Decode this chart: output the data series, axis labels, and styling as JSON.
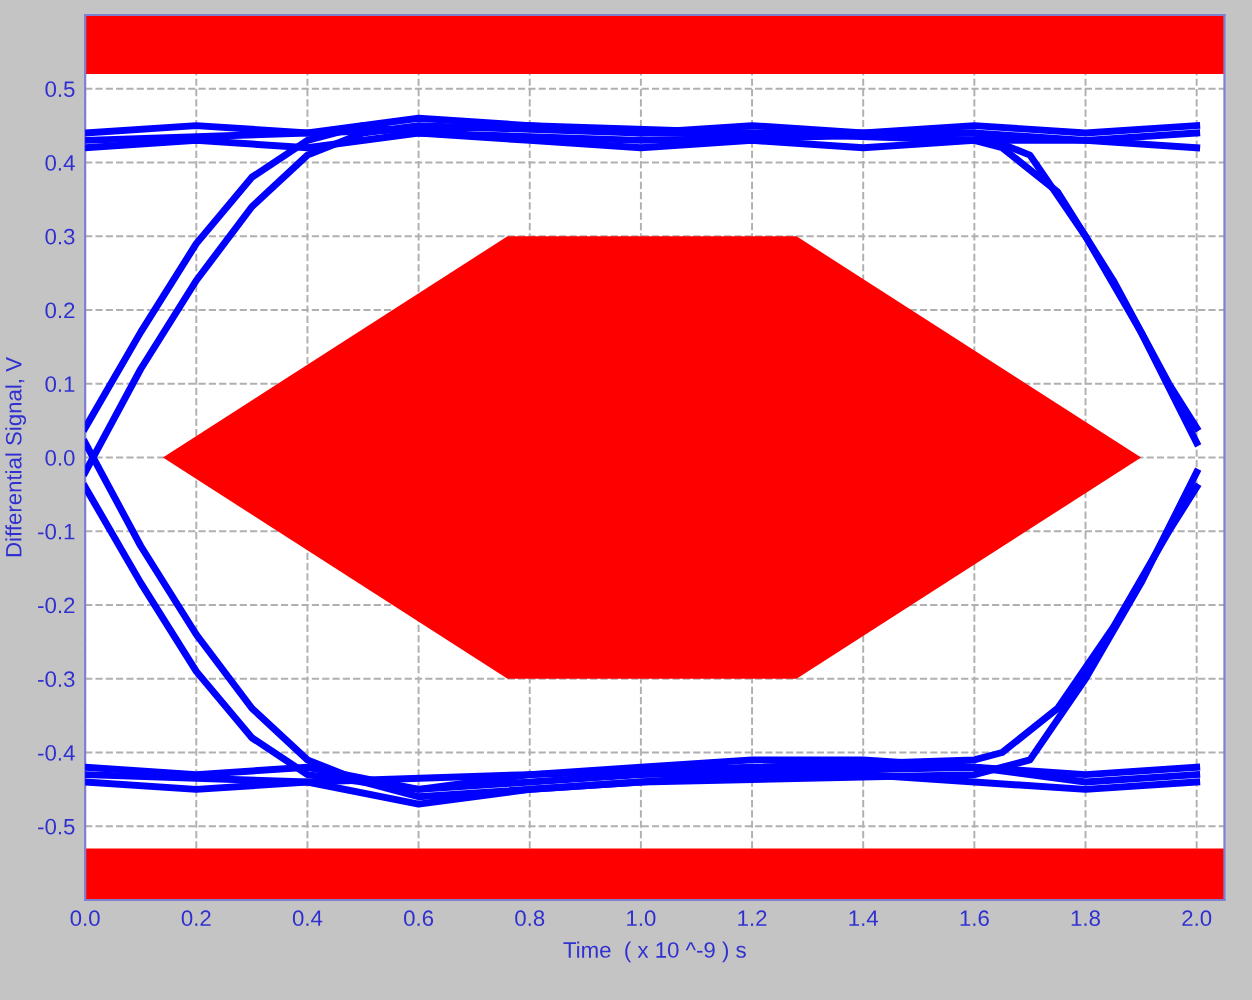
{
  "chart_data": {
    "type": "line",
    "xlabel": "Time  ( x 10 ^-9 ) s",
    "ylabel": "Differential Signal, V",
    "xlim": [
      0,
      2.05
    ],
    "ylim": [
      -0.6,
      0.6
    ],
    "xticks": [
      {
        "value": 0,
        "label": "0.0"
      },
      0.2,
      0.4,
      0.6,
      0.8,
      {
        "value": 1,
        "label": "1.0"
      },
      1.2,
      1.4,
      1.6,
      1.8,
      {
        "value": 2,
        "label": "2.0"
      }
    ],
    "yticks": [
      -0.5,
      -0.4,
      -0.3,
      -0.2,
      -0.1,
      {
        "value": 0,
        "label": "0.0"
      },
      0.1,
      0.2,
      0.3,
      0.4,
      0.5
    ],
    "grid": true,
    "legend": false,
    "marker": "none",
    "line_style": "solid",
    "bands": [
      {
        "axis": "y",
        "from": 0.52,
        "to": 0.6,
        "color": "#ff0000"
      },
      {
        "axis": "y",
        "from": -0.6,
        "to": -0.53,
        "color": "#ff0000"
      }
    ],
    "series": [
      {
        "type": "area",
        "color": "#ff0000",
        "x": [
          0.14,
          0.76,
          1.28,
          1.9,
          1.28,
          0.76,
          0.14
        ],
        "values": [
          0,
          0.3,
          0.3,
          0,
          -0.3,
          -0.3,
          0
        ]
      },
      {
        "color": "#0000ff",
        "x": [
          0,
          0.2,
          0.4,
          0.6,
          0.8,
          1.0,
          1.2,
          1.4,
          1.6,
          1.8,
          2.0
        ],
        "values": [
          0.44,
          0.45,
          0.44,
          0.46,
          0.45,
          0.44,
          0.45,
          0.44,
          0.45,
          0.44,
          0.45
        ]
      },
      {
        "color": "#0000ff",
        "x": [
          0,
          0.2,
          0.4,
          0.6,
          0.8,
          1.0,
          1.2,
          1.4,
          1.6,
          1.8,
          2.0
        ],
        "values": [
          0.42,
          0.43,
          0.42,
          0.44,
          0.43,
          0.42,
          0.43,
          0.42,
          0.43,
          0.43,
          0.42
        ]
      },
      {
        "color": "#0000ff",
        "x": [
          0,
          0.2,
          0.4,
          0.6,
          0.8,
          1.0,
          1.2,
          1.4,
          1.6,
          1.8,
          2.0
        ],
        "values": [
          -0.44,
          -0.45,
          -0.44,
          -0.47,
          -0.45,
          -0.44,
          -0.43,
          -0.43,
          -0.44,
          -0.45,
          -0.44
        ]
      },
      {
        "color": "#0000ff",
        "x": [
          0,
          0.2,
          0.4,
          0.6,
          0.8,
          1.0,
          1.2,
          1.4,
          1.6,
          1.8,
          2.0
        ],
        "values": [
          -0.42,
          -0.43,
          -0.42,
          -0.45,
          -0.43,
          -0.42,
          -0.41,
          -0.41,
          -0.42,
          -0.43,
          -0.42
        ]
      },
      {
        "color": "#0000ff",
        "x": [
          0,
          0.1,
          0.2,
          0.3,
          0.4,
          0.5,
          0.6,
          1.0,
          1.6,
          1.7,
          1.8,
          1.9,
          2.0
        ],
        "values": [
          -0.02,
          0.12,
          0.24,
          0.34,
          0.41,
          0.44,
          0.45,
          0.44,
          0.44,
          0.41,
          0.3,
          0.17,
          0.02
        ]
      },
      {
        "color": "#0000ff",
        "x": [
          0,
          0.1,
          0.2,
          0.3,
          0.4,
          0.5,
          0.6,
          1.0,
          1.6,
          1.7,
          1.8,
          1.9,
          2.0
        ],
        "values": [
          0.02,
          -0.12,
          -0.24,
          -0.34,
          -0.41,
          -0.44,
          -0.46,
          -0.44,
          -0.43,
          -0.41,
          -0.3,
          -0.17,
          -0.02
        ]
      },
      {
        "color": "#0000ff",
        "x": [
          0,
          0.1,
          0.2,
          0.3,
          0.4,
          0.5,
          0.6,
          1.0,
          1.6,
          1.8,
          2.0
        ],
        "values": [
          0.04,
          0.17,
          0.29,
          0.38,
          0.43,
          0.45,
          0.44,
          0.43,
          0.44,
          0.43,
          0.44
        ]
      },
      {
        "color": "#0000ff",
        "x": [
          0,
          0.1,
          0.2,
          0.3,
          0.4,
          0.5,
          0.6,
          1.0,
          1.6,
          1.8,
          2.0
        ],
        "values": [
          -0.04,
          -0.17,
          -0.29,
          -0.38,
          -0.43,
          -0.44,
          -0.45,
          -0.43,
          -0.42,
          -0.44,
          -0.43
        ]
      },
      {
        "color": "#0000ff",
        "x": [
          0,
          0.4,
          0.8,
          1.2,
          1.6,
          1.65,
          1.75,
          1.85,
          1.95,
          2.0
        ],
        "values": [
          0.43,
          0.44,
          0.45,
          0.44,
          0.43,
          0.42,
          0.36,
          0.24,
          0.1,
          0.04
        ]
      },
      {
        "color": "#0000ff",
        "x": [
          0,
          0.4,
          0.8,
          1.2,
          1.6,
          1.65,
          1.75,
          1.85,
          1.95,
          2.0
        ],
        "values": [
          -0.43,
          -0.44,
          -0.43,
          -0.42,
          -0.41,
          -0.4,
          -0.34,
          -0.23,
          -0.1,
          -0.04
        ]
      }
    ]
  }
}
